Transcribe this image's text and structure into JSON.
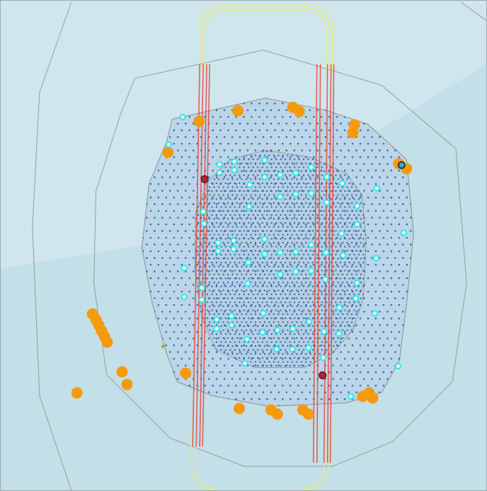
{
  "map": {
    "water_color": "#cfe6ee",
    "water_shade_color": "#c3dfe8",
    "boundary_color": "#9a9a9a",
    "inner_field_color": "#bcd6e8",
    "dot_color": "#2f6fb3",
    "cable_color": "#e8463a",
    "track_color": "#e9ec7c",
    "feature_orange": "#f59a0c",
    "marker_cyan": "#33e7ea",
    "marker_red": "#b0213a",
    "marker_olive": "#a8a341"
  },
  "layers": [
    {
      "id": "buffer-outer",
      "icon": "polyline-outline"
    },
    {
      "id": "buffer-inner",
      "icon": "polygon-outline"
    },
    {
      "id": "dot-field-sparse",
      "icon": "dot-grid"
    },
    {
      "id": "dot-field-dense",
      "icon": "dot-grid-dense"
    },
    {
      "id": "cables",
      "icon": "red-lines"
    },
    {
      "id": "track-loop",
      "icon": "yellow-loop"
    },
    {
      "id": "orange-features",
      "icon": "orange-circle"
    },
    {
      "id": "cyan-markers",
      "icon": "cyan-ring"
    },
    {
      "id": "red-markers",
      "icon": "red-dot"
    }
  ]
}
